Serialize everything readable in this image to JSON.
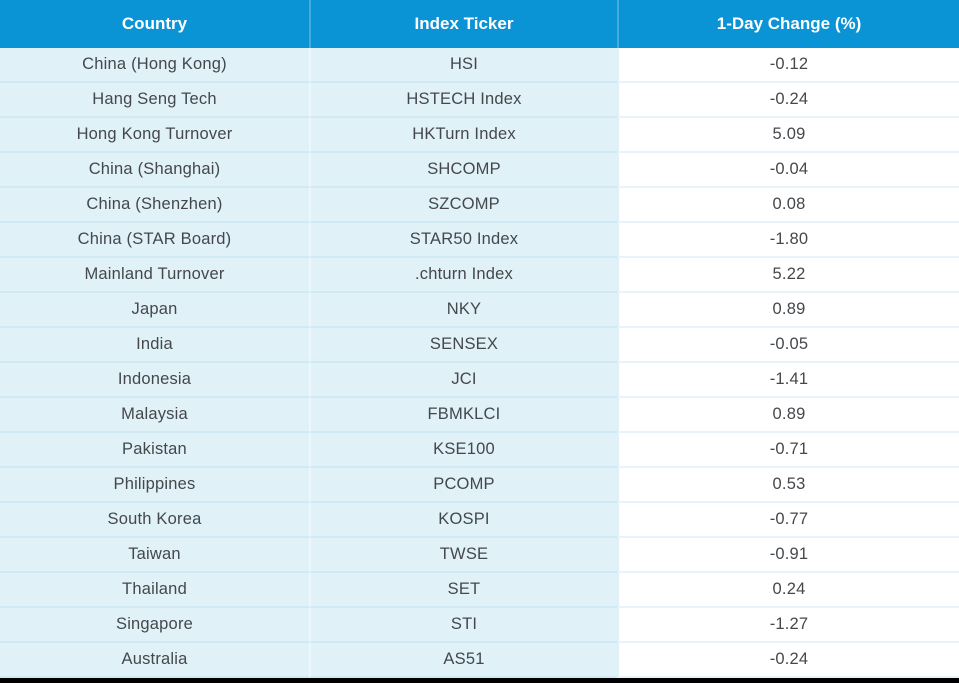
{
  "chart_data": {
    "type": "table",
    "columns": [
      "Country",
      "Index Ticker",
      "1-Day Change (%)"
    ],
    "rows": [
      [
        "China (Hong Kong)",
        "HSI",
        "-0.12"
      ],
      [
        "Hang Seng Tech",
        "HSTECH Index",
        "-0.24"
      ],
      [
        "Hong Kong Turnover",
        "HKTurn Index",
        "5.09"
      ],
      [
        "China (Shanghai)",
        "SHCOMP",
        "-0.04"
      ],
      [
        "China (Shenzhen)",
        "SZCOMP",
        "0.08"
      ],
      [
        "China (STAR Board)",
        "STAR50 Index",
        "-1.80"
      ],
      [
        "Mainland Turnover",
        ".chturn Index",
        "5.22"
      ],
      [
        "Japan",
        "NKY",
        "0.89"
      ],
      [
        "India",
        "SENSEX",
        "-0.05"
      ],
      [
        "Indonesia",
        "JCI",
        "-1.41"
      ],
      [
        "Malaysia",
        "FBMKLCI",
        "0.89"
      ],
      [
        "Pakistan",
        "KSE100",
        "-0.71"
      ],
      [
        "Philippines",
        "PCOMP",
        "0.53"
      ],
      [
        "South Korea",
        "KOSPI",
        "-0.77"
      ],
      [
        "Taiwan",
        "TWSE",
        "-0.91"
      ],
      [
        "Thailand",
        "SET",
        "0.24"
      ],
      [
        "Singapore",
        "STI",
        "-1.27"
      ],
      [
        "Australia",
        "AS51",
        "-0.24"
      ]
    ],
    "layout": {
      "legend": "none",
      "grid": "row-and-column-dividers",
      "value_alignment": "center"
    },
    "colors": {
      "header_bg": "#0a93d5",
      "header_text": "#ffffff",
      "row_bg_left": "#e0f1f8",
      "row_bg_value": "#ffffff",
      "row_divider": "#cfe9f5",
      "body_text": "#44484c",
      "bottom_bar": "#000000"
    }
  }
}
